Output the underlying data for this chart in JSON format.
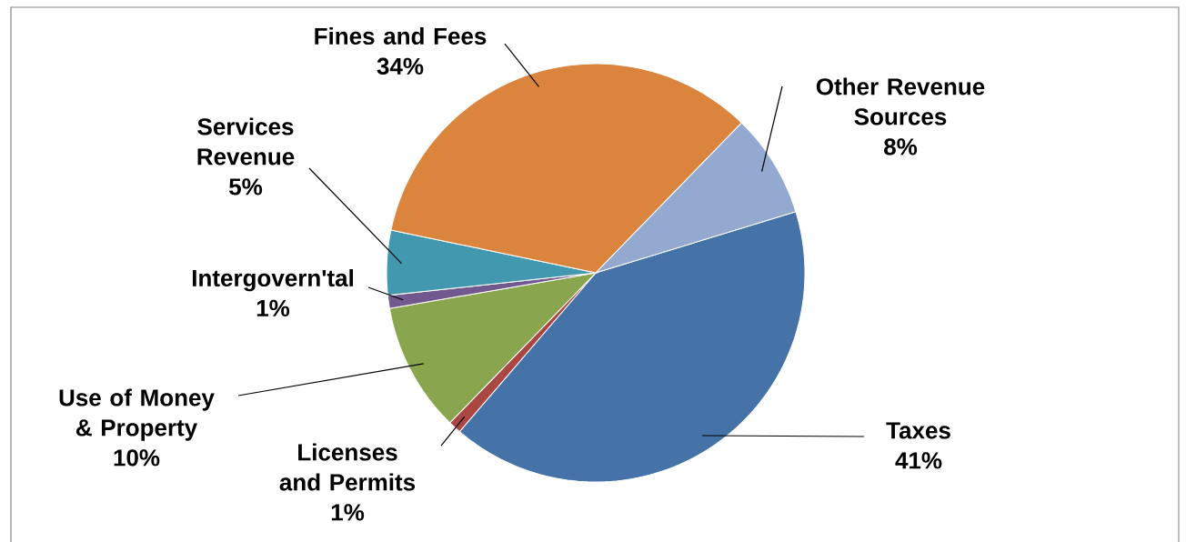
{
  "chart_data": {
    "type": "pie",
    "categories": [
      "Taxes",
      "Licenses and Permits",
      "Use of Money & Property",
      "Intergovern'tal",
      "Services Revenue",
      "Fines and Fees",
      "Other Revenue Sources"
    ],
    "values": [
      41,
      1,
      10,
      1,
      5,
      34,
      8
    ],
    "colors": [
      "#4572a7",
      "#aa4643",
      "#89a54e",
      "#71588f",
      "#4198af",
      "#db843d",
      "#93a9cf"
    ],
    "value_labels": [
      "41%",
      "1%",
      "10%",
      "1%",
      "5%",
      "34%",
      "8%"
    ]
  }
}
